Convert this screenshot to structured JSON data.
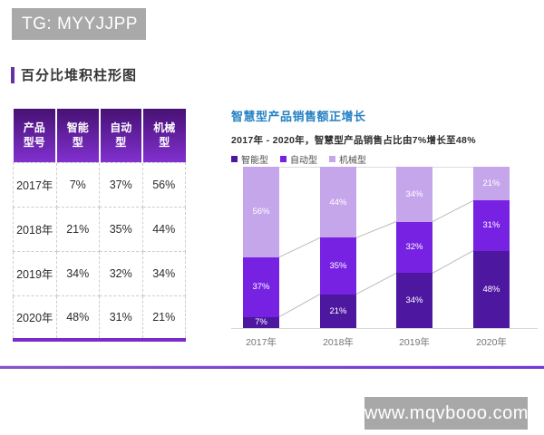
{
  "badge": {
    "text": "TG: MYYJJPP"
  },
  "section": {
    "title": "百分比堆积柱形图"
  },
  "colors": {
    "accent": "#6633a6",
    "table_header_gradient_top": "#471173",
    "table_header_gradient_bottom": "#8130cf",
    "table_bottom_border": "#7b2bc9",
    "chart_title": "#2581c4",
    "divider": "#7a44cc",
    "badge_bg": "#a9a9a9",
    "connector_line": "#bbbbbb"
  },
  "table": {
    "headers": [
      "产品型号",
      "智能型",
      "自动型",
      "机械型"
    ],
    "rows": [
      {
        "label": "2017年",
        "values": [
          "7%",
          "37%",
          "56%"
        ]
      },
      {
        "label": "2018年",
        "values": [
          "21%",
          "35%",
          "44%"
        ]
      },
      {
        "label": "2019年",
        "values": [
          "34%",
          "32%",
          "34%"
        ]
      },
      {
        "label": "2020年",
        "values": [
          "48%",
          "31%",
          "21%"
        ]
      }
    ]
  },
  "chart": {
    "title": "智慧型产品销售额正增长",
    "subtitle": "2017年 - 2020年，智慧型产品销售占比由7%增长至48%"
  },
  "chart_data": {
    "type": "bar",
    "stacked": true,
    "percent": true,
    "title": "智慧型产品销售额正增长",
    "subtitle": "2017年 - 2020年，智慧型产品销售占比由7%增长至48%",
    "categories": [
      "2017年",
      "2018年",
      "2019年",
      "2020年"
    ],
    "series": [
      {
        "name": "智能型",
        "color": "#4d17a0",
        "values": [
          7,
          21,
          34,
          48
        ]
      },
      {
        "name": "自动型",
        "color": "#7722e3",
        "values": [
          37,
          35,
          32,
          31
        ]
      },
      {
        "name": "机械型",
        "color": "#c5a6eb",
        "values": [
          56,
          44,
          34,
          21
        ]
      }
    ],
    "data_labels": [
      [
        "7%",
        "21%",
        "34%",
        "48%"
      ],
      [
        "37%",
        "35%",
        "32%",
        "31%"
      ],
      [
        "56%",
        "44%",
        "34%",
        "21%"
      ]
    ],
    "ylim": [
      0,
      100
    ],
    "grid": false,
    "legend_position": "top-left",
    "connector_lines": true
  },
  "watermark": {
    "text": "www.mqvbooo.com"
  }
}
